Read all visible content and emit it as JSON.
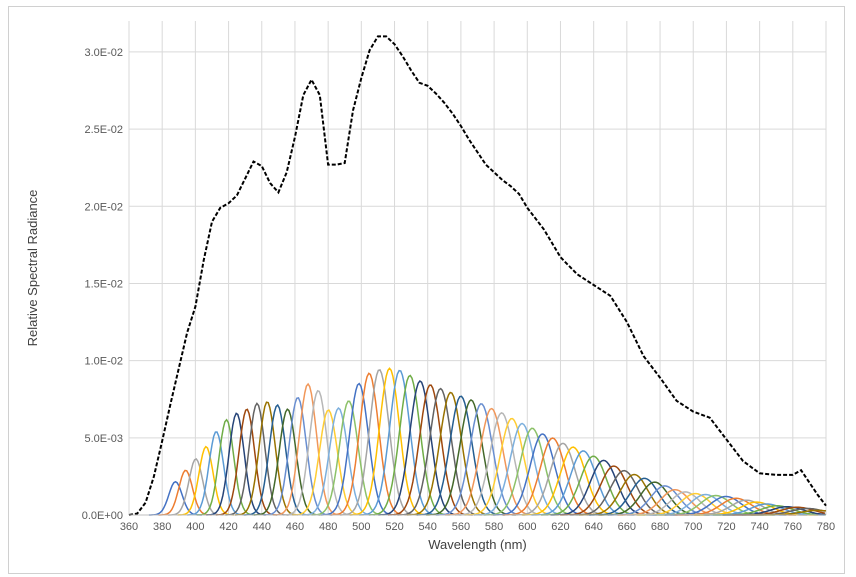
{
  "chart_data": {
    "type": "line",
    "title": "",
    "xlabel": "Wavelength (nm)",
    "ylabel": "Relative Spectral Radiance",
    "xlim": [
      360,
      780
    ],
    "ylim": [
      0,
      0.032
    ],
    "grid": true,
    "legend": "none",
    "x_ticks": [
      360,
      380,
      400,
      420,
      440,
      460,
      480,
      500,
      520,
      540,
      560,
      580,
      600,
      620,
      640,
      660,
      680,
      700,
      720,
      740,
      760,
      780
    ],
    "y_ticks": [
      0,
      0.005,
      0.01,
      0.015,
      0.02,
      0.025,
      0.03
    ],
    "y_tick_labels": [
      "0.0E+00",
      "5.0E-03",
      "1.0E-02",
      "1.5E-02",
      "2.0E-02",
      "2.5E-02",
      "3.0E-02"
    ],
    "series": [
      {
        "style": "dashed",
        "color": "#000000",
        "x": [
          360,
          365,
          370,
          375,
          380,
          385,
          390,
          395,
          400,
          405,
          410,
          415,
          420,
          425,
          430,
          435,
          440,
          445,
          450,
          455,
          460,
          465,
          470,
          475,
          480,
          485,
          490,
          495,
          500,
          505,
          510,
          515,
          520,
          525,
          530,
          535,
          540,
          545,
          550,
          555,
          560,
          565,
          570,
          575,
          580,
          585,
          590,
          595,
          600,
          610,
          620,
          630,
          640,
          650,
          660,
          670,
          680,
          690,
          700,
          710,
          720,
          730,
          740,
          750,
          760,
          765,
          770,
          775,
          780
        ],
        "y": [
          0.0,
          0.0001,
          0.0008,
          0.0025,
          0.0048,
          0.0072,
          0.0095,
          0.0118,
          0.0135,
          0.0165,
          0.019,
          0.0199,
          0.0202,
          0.0207,
          0.0218,
          0.0229,
          0.0226,
          0.0215,
          0.0209,
          0.0222,
          0.0245,
          0.0272,
          0.0282,
          0.0272,
          0.0227,
          0.0227,
          0.0228,
          0.0262,
          0.0283,
          0.0301,
          0.031,
          0.031,
          0.0305,
          0.0297,
          0.0288,
          0.028,
          0.0278,
          0.0273,
          0.0267,
          0.026,
          0.0252,
          0.0243,
          0.0235,
          0.0227,
          0.0222,
          0.0217,
          0.0213,
          0.0208,
          0.0199,
          0.0185,
          0.0167,
          0.0156,
          0.0149,
          0.0142,
          0.0125,
          0.0103,
          0.0089,
          0.0074,
          0.0067,
          0.0063,
          0.0049,
          0.0035,
          0.0027,
          0.0026,
          0.0026,
          0.0029,
          0.0021,
          0.0013,
          0.0006
        ]
      }
    ],
    "narrowband_series": {
      "count": 64,
      "peak_wavelength_range_nm": [
        388,
        775
      ],
      "peak_envelope": {
        "x": [
          385,
          390,
          395,
          400,
          405,
          410,
          415,
          420,
          425,
          430,
          435,
          440,
          445,
          450,
          455,
          460,
          465,
          470,
          475,
          480,
          485,
          490,
          495,
          500,
          505,
          510,
          515,
          520,
          525,
          530,
          535,
          540,
          545,
          550,
          555,
          560,
          565,
          570,
          575,
          580,
          585,
          590,
          595,
          600,
          605,
          610,
          615,
          620,
          625,
          630,
          635,
          640,
          645,
          650,
          655,
          660,
          665,
          670,
          675,
          680,
          690,
          700,
          710,
          720,
          730,
          740,
          750,
          760,
          765,
          770,
          775
        ],
        "y": [
          0.0018,
          0.0024,
          0.003,
          0.0036,
          0.0042,
          0.005,
          0.0058,
          0.0063,
          0.0066,
          0.0068,
          0.0071,
          0.0074,
          0.0073,
          0.0071,
          0.0068,
          0.0073,
          0.0082,
          0.0087,
          0.0079,
          0.0068,
          0.0069,
          0.007,
          0.0078,
          0.0088,
          0.0092,
          0.0094,
          0.0095,
          0.0095,
          0.0093,
          0.009,
          0.0087,
          0.0085,
          0.0083,
          0.0081,
          0.0079,
          0.0077,
          0.0075,
          0.0073,
          0.0071,
          0.0068,
          0.0066,
          0.0063,
          0.006,
          0.0058,
          0.0055,
          0.0052,
          0.005,
          0.0047,
          0.0045,
          0.0043,
          0.0041,
          0.0038,
          0.0036,
          0.0033,
          0.003,
          0.0028,
          0.0026,
          0.0024,
          0.0022,
          0.002,
          0.0016,
          0.0014,
          0.0013,
          0.0012,
          0.001,
          0.0008,
          0.0006,
          0.0005,
          0.0005,
          0.0004,
          0.0003
        ]
      },
      "colors": [
        "#4472C4",
        "#ED7D31",
        "#A5A5A5",
        "#FFC000",
        "#5B9BD5",
        "#70AD47",
        "#264478",
        "#9E480E",
        "#636363",
        "#997300",
        "#255E91",
        "#43682B",
        "#698ED0",
        "#F1975A",
        "#B7B7B7",
        "#FFCD33",
        "#7CAFDD",
        "#8CC168"
      ]
    }
  }
}
